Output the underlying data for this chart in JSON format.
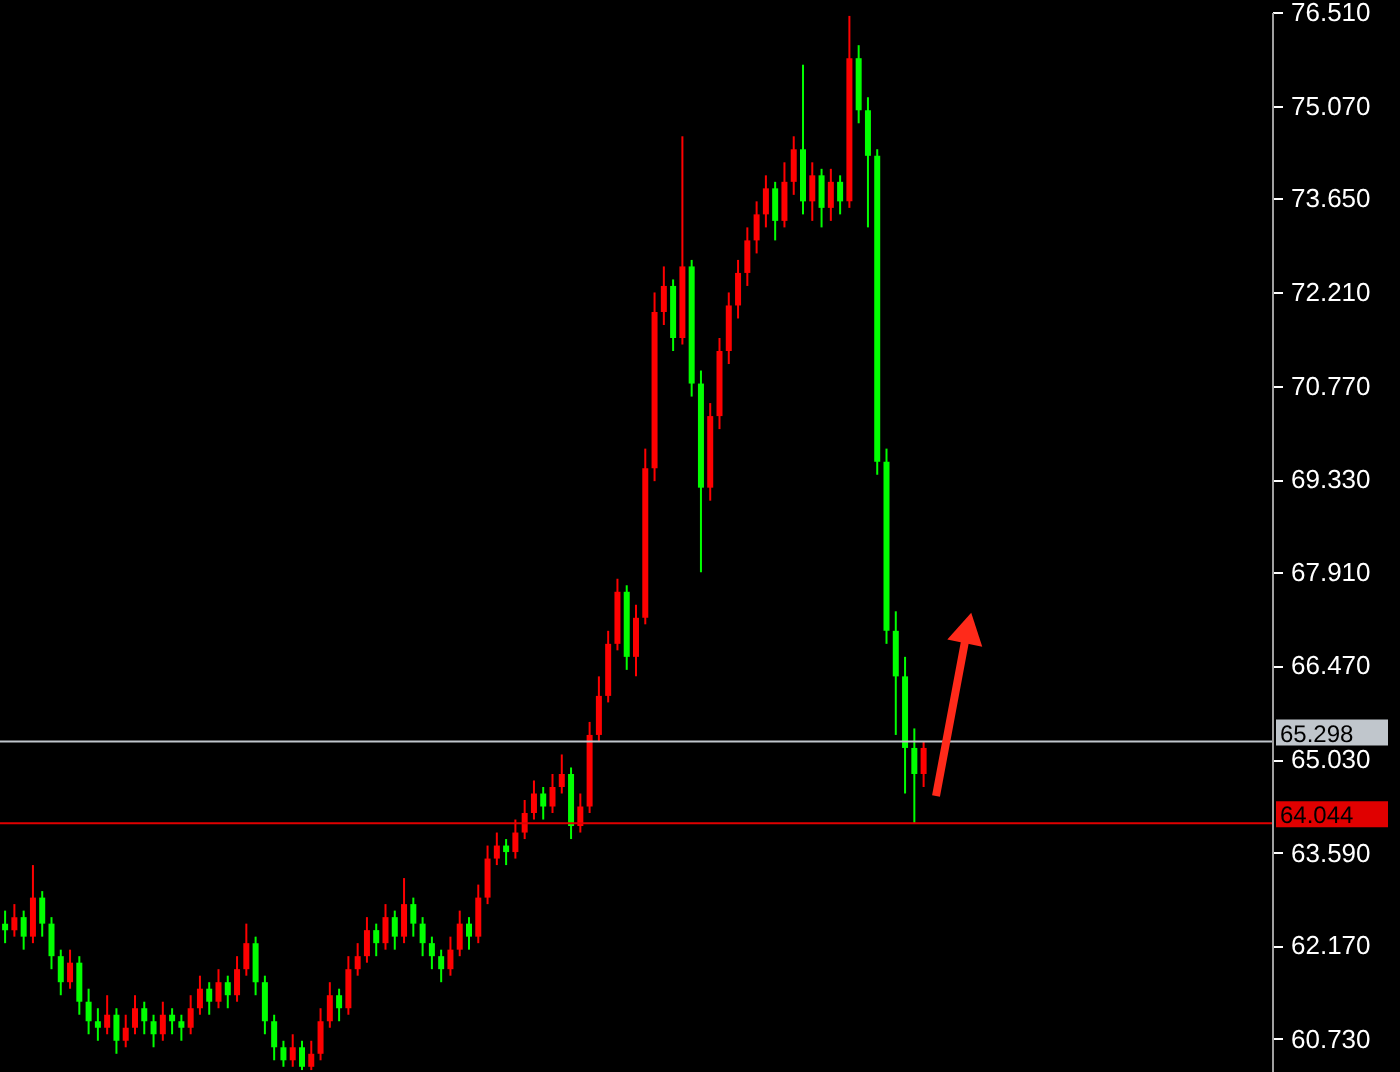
{
  "chart_data": {
    "type": "candlestick",
    "categories": [
      null,
      null,
      null,
      null,
      null,
      null,
      null,
      null,
      null,
      null,
      null,
      null,
      null,
      null,
      null,
      null,
      null,
      null,
      null,
      null,
      null,
      null,
      null,
      null,
      null,
      null,
      null,
      null,
      null,
      null,
      null,
      null,
      null,
      null,
      null,
      null,
      null,
      null,
      null,
      null,
      null,
      null,
      null,
      null,
      null,
      null,
      null,
      null,
      null,
      null,
      null,
      null,
      null,
      null,
      null,
      null,
      null,
      null,
      null,
      null,
      null,
      null,
      null,
      null,
      null,
      null,
      null,
      null,
      null,
      null,
      null,
      null,
      null,
      null,
      null,
      null,
      null,
      null,
      null,
      null,
      null,
      null,
      null,
      null,
      null,
      null,
      null,
      null,
      null,
      null,
      null,
      null,
      null,
      null,
      null,
      null,
      null,
      null,
      null,
      null,
      null,
      null,
      null,
      null,
      null,
      null,
      null,
      null,
      null,
      null,
      null,
      null,
      null,
      null,
      null,
      null,
      null,
      null,
      null,
      null,
      null,
      null,
      null,
      null,
      null,
      null,
      null,
      null,
      null,
      null,
      null,
      null,
      null,
      null,
      null,
      null,
      null
    ],
    "ohlc": [
      [
        62.5,
        62.7,
        62.2,
        62.4
      ],
      [
        62.4,
        62.8,
        62.3,
        62.6
      ],
      [
        62.6,
        62.7,
        62.1,
        62.3
      ],
      [
        62.3,
        63.4,
        62.2,
        62.9
      ],
      [
        62.9,
        63.0,
        62.3,
        62.5
      ],
      [
        62.5,
        62.6,
        61.8,
        62.0
      ],
      [
        62.0,
        62.1,
        61.4,
        61.6
      ],
      [
        61.6,
        62.1,
        61.5,
        61.9
      ],
      [
        61.9,
        62.0,
        61.1,
        61.3
      ],
      [
        61.3,
        61.5,
        60.8,
        61.0
      ],
      [
        61.0,
        61.2,
        60.7,
        60.9
      ],
      [
        60.9,
        61.4,
        60.8,
        61.1
      ],
      [
        61.1,
        61.2,
        60.5,
        60.7
      ],
      [
        60.7,
        61.1,
        60.6,
        60.9
      ],
      [
        60.9,
        61.4,
        60.8,
        61.2
      ],
      [
        61.2,
        61.3,
        60.8,
        61.0
      ],
      [
        61.0,
        61.1,
        60.6,
        60.8
      ],
      [
        60.8,
        61.3,
        60.7,
        61.1
      ],
      [
        61.1,
        61.2,
        60.8,
        61.0
      ],
      [
        61.0,
        61.1,
        60.7,
        60.9
      ],
      [
        60.9,
        61.4,
        60.8,
        61.2
      ],
      [
        61.2,
        61.7,
        61.1,
        61.5
      ],
      [
        61.5,
        61.6,
        61.1,
        61.3
      ],
      [
        61.3,
        61.8,
        61.2,
        61.6
      ],
      [
        61.6,
        61.7,
        61.2,
        61.4
      ],
      [
        61.4,
        62.0,
        61.3,
        61.8
      ],
      [
        61.8,
        62.5,
        61.7,
        62.2
      ],
      [
        62.2,
        62.3,
        61.4,
        61.6
      ],
      [
        61.6,
        61.7,
        60.8,
        61.0
      ],
      [
        61.0,
        61.1,
        60.4,
        60.6
      ],
      [
        60.6,
        60.7,
        60.3,
        60.4
      ],
      [
        60.4,
        60.8,
        60.3,
        60.6
      ],
      [
        60.6,
        60.7,
        60.25,
        60.3
      ],
      [
        60.3,
        60.7,
        60.25,
        60.5
      ],
      [
        60.5,
        61.2,
        60.4,
        61.0
      ],
      [
        61.0,
        61.6,
        60.9,
        61.4
      ],
      [
        61.4,
        61.5,
        61.0,
        61.2
      ],
      [
        61.2,
        62.0,
        61.1,
        61.8
      ],
      [
        61.8,
        62.2,
        61.7,
        62.0
      ],
      [
        62.0,
        62.6,
        61.9,
        62.4
      ],
      [
        62.4,
        62.5,
        62.0,
        62.2
      ],
      [
        62.2,
        62.8,
        62.1,
        62.6
      ],
      [
        62.6,
        62.7,
        62.1,
        62.3
      ],
      [
        62.3,
        63.2,
        62.2,
        62.8
      ],
      [
        62.8,
        62.9,
        62.3,
        62.5
      ],
      [
        62.5,
        62.6,
        62.0,
        62.2
      ],
      [
        62.2,
        62.3,
        61.8,
        62.0
      ],
      [
        62.0,
        62.1,
        61.6,
        61.8
      ],
      [
        61.8,
        62.3,
        61.7,
        62.1
      ],
      [
        62.1,
        62.7,
        62.0,
        62.5
      ],
      [
        62.5,
        62.6,
        62.1,
        62.3
      ],
      [
        62.3,
        63.1,
        62.2,
        62.9
      ],
      [
        62.9,
        63.7,
        62.8,
        63.5
      ],
      [
        63.5,
        63.9,
        63.4,
        63.7
      ],
      [
        63.7,
        63.8,
        63.4,
        63.6
      ],
      [
        63.6,
        64.1,
        63.5,
        63.9
      ],
      [
        63.9,
        64.4,
        63.8,
        64.2
      ],
      [
        64.2,
        64.7,
        64.1,
        64.5
      ],
      [
        64.5,
        64.6,
        64.1,
        64.3
      ],
      [
        64.3,
        64.8,
        64.2,
        64.6
      ],
      [
        64.6,
        65.1,
        64.5,
        64.8
      ],
      [
        64.8,
        64.9,
        63.8,
        64.0
      ],
      [
        64.0,
        64.5,
        63.9,
        64.3
      ],
      [
        64.3,
        65.6,
        64.2,
        65.4
      ],
      [
        65.4,
        66.3,
        65.3,
        66.0
      ],
      [
        66.0,
        67.0,
        65.9,
        66.8
      ],
      [
        66.8,
        67.8,
        66.7,
        67.6
      ],
      [
        67.6,
        67.7,
        66.4,
        66.6
      ],
      [
        66.6,
        67.4,
        66.3,
        67.2
      ],
      [
        67.2,
        69.8,
        67.1,
        69.5
      ],
      [
        69.5,
        72.2,
        69.3,
        71.9
      ],
      [
        71.9,
        72.6,
        71.7,
        72.3
      ],
      [
        72.3,
        72.4,
        71.3,
        71.5
      ],
      [
        71.5,
        74.6,
        71.4,
        72.6
      ],
      [
        72.6,
        72.7,
        70.6,
        70.8
      ],
      [
        70.8,
        71.0,
        67.9,
        69.2
      ],
      [
        69.2,
        70.5,
        69.0,
        70.3
      ],
      [
        70.3,
        71.5,
        70.1,
        71.3
      ],
      [
        71.3,
        72.2,
        71.1,
        72.0
      ],
      [
        72.0,
        72.7,
        71.8,
        72.5
      ],
      [
        72.5,
        73.2,
        72.3,
        73.0
      ],
      [
        73.0,
        73.6,
        72.8,
        73.4
      ],
      [
        73.4,
        74.0,
        73.2,
        73.8
      ],
      [
        73.8,
        73.9,
        73.0,
        73.3
      ],
      [
        73.3,
        74.2,
        73.2,
        73.9
      ],
      [
        73.9,
        74.6,
        73.7,
        74.4
      ],
      [
        74.4,
        75.7,
        73.4,
        73.6
      ],
      [
        73.6,
        74.2,
        73.3,
        74.0
      ],
      [
        74.0,
        74.1,
        73.2,
        73.5
      ],
      [
        73.5,
        74.1,
        73.3,
        73.9
      ],
      [
        73.9,
        74.0,
        73.4,
        73.6
      ],
      [
        73.6,
        76.45,
        73.5,
        75.8
      ],
      [
        75.8,
        76.0,
        74.8,
        75.0
      ],
      [
        75.0,
        75.2,
        73.2,
        74.3
      ],
      [
        74.3,
        74.4,
        69.4,
        69.6
      ],
      [
        69.6,
        69.8,
        66.8,
        67.0
      ],
      [
        67.0,
        67.3,
        65.4,
        66.3
      ],
      [
        66.3,
        66.6,
        64.5,
        65.2
      ],
      [
        65.2,
        65.5,
        64.05,
        64.8
      ],
      [
        64.8,
        65.3,
        64.6,
        65.2
      ],
      null,
      null,
      null,
      null,
      null,
      null,
      null,
      null,
      null,
      null,
      null,
      null,
      null,
      null,
      null,
      null,
      null,
      null,
      null,
      null,
      null,
      null,
      null,
      null,
      null,
      null,
      null,
      null,
      null,
      null,
      null,
      null,
      null,
      null,
      null,
      null,
      null
    ],
    "colors": [
      "#00ff00",
      "#ff0000",
      "#00ff00",
      "#ff0000",
      "#00ff00",
      "#00ff00",
      "#00ff00",
      "#ff0000",
      "#00ff00",
      "#00ff00",
      "#00ff00",
      "#ff0000",
      "#00ff00",
      "#ff0000",
      "#ff0000",
      "#00ff00",
      "#00ff00",
      "#ff0000",
      "#00ff00",
      "#00ff00",
      "#ff0000",
      "#ff0000",
      "#00ff00",
      "#ff0000",
      "#00ff00",
      "#ff0000",
      "#ff0000",
      "#00ff00",
      "#00ff00",
      "#00ff00",
      "#00ff00",
      "#ff0000",
      "#00ff00",
      "#ff0000",
      "#ff0000",
      "#ff0000",
      "#00ff00",
      "#ff0000",
      "#ff0000",
      "#ff0000",
      "#00ff00",
      "#ff0000",
      "#00ff00",
      "#ff0000",
      "#00ff00",
      "#00ff00",
      "#00ff00",
      "#00ff00",
      "#ff0000",
      "#ff0000",
      "#00ff00",
      "#ff0000",
      "#ff0000",
      "#ff0000",
      "#00ff00",
      "#ff0000",
      "#ff0000",
      "#ff0000",
      "#00ff00",
      "#ff0000",
      "#ff0000",
      "#00ff00",
      "#ff0000",
      "#ff0000",
      "#ff0000",
      "#ff0000",
      "#ff0000",
      "#00ff00",
      "#ff0000",
      "#ff0000",
      "#ff0000",
      "#ff0000",
      "#00ff00",
      "#ff0000",
      "#00ff00",
      "#00ff00",
      "#ff0000",
      "#ff0000",
      "#ff0000",
      "#ff0000",
      "#ff0000",
      "#ff0000",
      "#ff0000",
      "#00ff00",
      "#ff0000",
      "#ff0000",
      "#00ff00",
      "#ff0000",
      "#00ff00",
      "#ff0000",
      "#00ff00",
      "#ff0000",
      "#00ff00",
      "#00ff00",
      "#00ff00",
      "#00ff00",
      "#00ff00",
      "#00ff00",
      "#00ff00",
      "#ff0000",
      null,
      null,
      null,
      null,
      null,
      null,
      null,
      null,
      null,
      null,
      null,
      null,
      null,
      null,
      null,
      null,
      null,
      null,
      null,
      null,
      null,
      null,
      null,
      null,
      null,
      null,
      null,
      null,
      null,
      null,
      null,
      null,
      null,
      null,
      null,
      null,
      null
    ],
    "ylim": [
      60.22,
      76.51
    ],
    "yticks": [
      {
        "value": 76.51,
        "label": "76.510"
      },
      {
        "value": 75.07,
        "label": "75.070"
      },
      {
        "value": 73.65,
        "label": "73.650"
      },
      {
        "value": 72.21,
        "label": "72.210"
      },
      {
        "value": 70.77,
        "label": "70.770"
      },
      {
        "value": 69.33,
        "label": "69.330"
      },
      {
        "value": 67.91,
        "label": "67.910"
      },
      {
        "value": 66.47,
        "label": "66.470"
      },
      {
        "value": 65.03,
        "label": "65.030"
      },
      {
        "value": 63.59,
        "label": "63.590"
      },
      {
        "value": 62.17,
        "label": "62.170"
      },
      {
        "value": 60.73,
        "label": "60.730"
      }
    ],
    "ref_lines": [
      {
        "axis": "y",
        "value": 65.298,
        "label": "65.298",
        "color": "#c0c6cc"
      },
      {
        "axis": "y",
        "value": 64.044,
        "label": "64.044",
        "color": "#e00000"
      }
    ],
    "tick_labels": "y",
    "grid": false
  }
}
